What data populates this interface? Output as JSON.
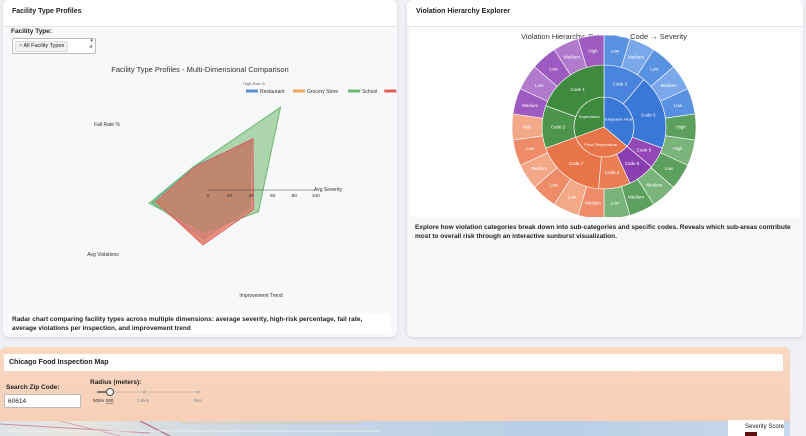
{
  "facility_panel": {
    "title": "Facility Type Profiles",
    "filter_label": "Facility Type:",
    "filter_value": "All Facility Types",
    "chart_title": "Facility Type Profiles - Multi-Dimensional Comparison",
    "description": "Radar chart comparing facility types across multiple dimensions: average severity, high-risk percentage, fail rate, average violations per inspection, and improvement trend"
  },
  "violation_panel": {
    "title": "Violation Hierarchy Explorer",
    "chart_title": "Violation Hierarchy: Category → Code → Severity",
    "description": "Explore how violation categories break down into sub-categories and specific codes. Reveals which sub-areas contribute most to overall risk through an interactive sunburst visualization."
  },
  "map_panel": {
    "title": "Chicago Food Inspection Map",
    "zip_label": "Search Zip Code:",
    "zip_value": "60614",
    "radius_label": "Radius (meters):",
    "radius_ticks": [
      "500m",
      "2.5km",
      "5km"
    ],
    "radius_value": "500",
    "severity_label": "Severity Score"
  },
  "chart_data": [
    {
      "type": "radar",
      "title": "Facility Type Profiles - Multi-Dimensional Comparison",
      "axes": [
        "High-Risk %",
        "Avg Severity",
        "Improvement Trend",
        "Avg Violations",
        "Fail Rate %"
      ],
      "radial_ticks": [
        0,
        20,
        40,
        60,
        80,
        100
      ],
      "series": [
        {
          "name": "Restaurant",
          "color": "#5b8fd1",
          "values": [
            60,
            25,
            52,
            45,
            40
          ]
        },
        {
          "name": "Grocery Store",
          "color": "#f0a860",
          "values": [
            58,
            22,
            50,
            48,
            42
          ]
        },
        {
          "name": "School",
          "color": "#6fb86f",
          "values": [
            100,
            25,
            55,
            38,
            50
          ]
        },
        {
          "name": "Bakery",
          "color": "#e0605e",
          "values": [
            62,
            24,
            48,
            50,
            45
          ]
        }
      ]
    },
    {
      "type": "sunburst",
      "title": "Violation Hierarchy: Category → Code → Severity",
      "inner": [
        "Employee Health",
        "Supervision",
        "Food Temperature"
      ],
      "middle": [
        "Code 5",
        "Code 3",
        "Code 1",
        "Code 2",
        "Code 7",
        "Code 4",
        "Code 8",
        "Code 9"
      ],
      "outer": [
        "Low",
        "Medium",
        "Low",
        "Medium",
        "Low",
        "High",
        "High",
        "Low",
        "Medium",
        "Medium",
        "Low",
        "Medium",
        "Low",
        "Low",
        "Medium",
        "Low",
        "High",
        "Medium",
        "Low",
        "Low",
        "Medium",
        "High"
      ]
    }
  ]
}
